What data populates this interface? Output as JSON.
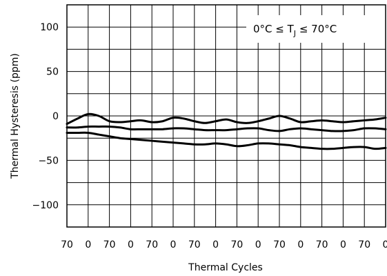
{
  "chart_data": {
    "type": "line",
    "xlabel": "Thermal Cycles",
    "ylabel": "Thermal Hysteresis (ppm)",
    "x_tick_labels": [
      "70",
      "0",
      "70",
      "0",
      "70",
      "0",
      "70",
      "0",
      "70",
      "0",
      "70",
      "0",
      "70",
      "0",
      "70",
      "0"
    ],
    "y_ticks": [
      100,
      50,
      0,
      -50,
      -100
    ],
    "y_tick_labels": [
      "100",
      "50",
      "0",
      "−50",
      "−100"
    ],
    "ylim": [
      -125,
      125
    ],
    "xlim": [
      0,
      15
    ],
    "grid": true,
    "annotation": {
      "prefix": "0°C ≤ T",
      "subscript": "J",
      "suffix": " ≤ 70°C",
      "placement": "top-right"
    },
    "series": [
      {
        "x": [
          0,
          0.5,
          1,
          1.5,
          2,
          2.5,
          3,
          3.5,
          4,
          4.5,
          5,
          5.5,
          6,
          6.5,
          7,
          7.5,
          8,
          8.5,
          9,
          9.5,
          10,
          10.5,
          11,
          11.5,
          12,
          12.5,
          13,
          13.5,
          14,
          14.5,
          15
        ],
        "values": [
          -9,
          -3,
          2,
          0,
          -6,
          -7,
          -6,
          -5,
          -7,
          -6,
          -2,
          -3,
          -6,
          -8,
          -6,
          -4,
          -7,
          -8,
          -6,
          -3,
          0,
          -3,
          -7,
          -6,
          -5,
          -6,
          -7,
          -6,
          -5,
          -4,
          -2
        ]
      },
      {
        "x": [
          0,
          0.5,
          1,
          1.5,
          2,
          2.5,
          3,
          3.5,
          4,
          4.5,
          5,
          5.5,
          6,
          6.5,
          7,
          7.5,
          8,
          8.5,
          9,
          9.5,
          10,
          10.5,
          11,
          11.5,
          12,
          12.5,
          13,
          13.5,
          14,
          14.5,
          15
        ],
        "values": [
          -13,
          -13,
          -12,
          -12,
          -12,
          -13,
          -15,
          -15,
          -15,
          -15,
          -14,
          -14,
          -15,
          -16,
          -16,
          -16,
          -15,
          -14,
          -14,
          -16,
          -17,
          -15,
          -14,
          -15,
          -16,
          -17,
          -17,
          -16,
          -14,
          -14,
          -15
        ]
      },
      {
        "x": [
          0,
          0.5,
          1,
          1.5,
          2,
          2.5,
          3,
          3.5,
          4,
          4.5,
          5,
          5.5,
          6,
          6.5,
          7,
          7.5,
          8,
          8.5,
          9,
          9.5,
          10,
          10.5,
          11,
          11.5,
          12,
          12.5,
          13,
          13.5,
          14,
          14.5,
          15
        ],
        "values": [
          -19,
          -19,
          -19,
          -21,
          -23,
          -25,
          -26,
          -27,
          -28,
          -29,
          -30,
          -31,
          -32,
          -32,
          -31,
          -32,
          -34,
          -33,
          -31,
          -31,
          -32,
          -33,
          -35,
          -36,
          -37,
          -37,
          -36,
          -35,
          -35,
          -37,
          -36
        ]
      }
    ]
  }
}
